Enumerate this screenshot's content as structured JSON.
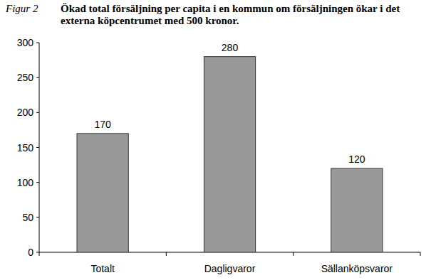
{
  "chart_data": {
    "type": "bar",
    "title": "Ökad total försäljning per capita i en kommun om försäljningen ökar i det externa köpcentrumet med 500 kronor.",
    "annotations": [
      "Figur 2"
    ],
    "categories": [
      "Totalt",
      "Dagligvaror",
      "Sällanköpsvaror"
    ],
    "values": [
      170,
      280,
      120
    ],
    "color": "#999999",
    "ylim": [
      0,
      300
    ],
    "yticks": [
      0,
      50,
      100,
      150,
      200,
      250,
      300
    ],
    "grid": false,
    "data_labels": true
  }
}
